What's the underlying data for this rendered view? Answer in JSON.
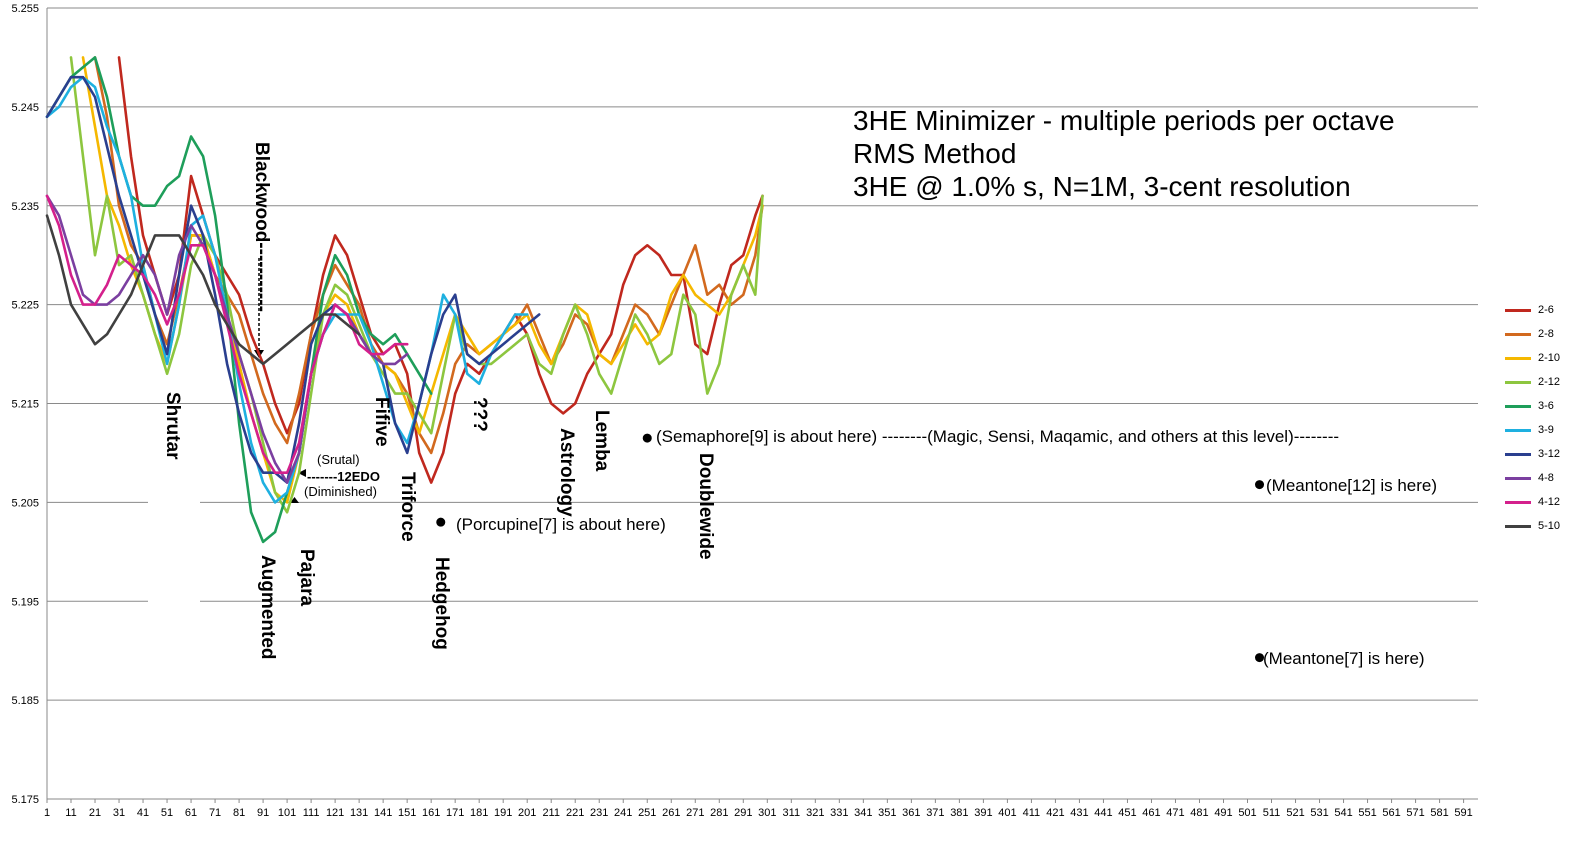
{
  "chart_data": {
    "type": "line",
    "title": "3HE Minimizer - multiple periods per octave",
    "subtitle_lines": [
      "RMS Method",
      "3HE @ 1.0% s, N=1M, 3-cent resolution"
    ],
    "xlabel": "",
    "ylabel": "",
    "xlim": [
      1,
      597
    ],
    "ylim": [
      5.175,
      5.255
    ],
    "x_ticks": [
      1,
      11,
      21,
      31,
      41,
      51,
      61,
      71,
      81,
      91,
      101,
      111,
      121,
      131,
      141,
      151,
      161,
      171,
      181,
      191,
      201,
      211,
      221,
      231,
      241,
      251,
      261,
      271,
      281,
      291,
      301,
      311,
      321,
      331,
      341,
      351,
      361,
      371,
      381,
      391,
      401,
      411,
      421,
      431,
      441,
      451,
      461,
      471,
      481,
      491,
      501,
      511,
      521,
      531,
      541,
      551,
      561,
      571,
      581,
      591
    ],
    "y_ticks": [
      "5.175",
      "5.185",
      "5.195",
      "5.205",
      "5.215",
      "5.225",
      "5.235",
      "5.245",
      "5.255"
    ],
    "grid": "horizontal",
    "legend_position": "right",
    "series": [
      {
        "name": "2-6",
        "color": "#C0281E",
        "x": [
          31,
          36,
          41,
          46,
          51,
          56,
          61,
          66,
          71,
          76,
          81,
          86,
          91,
          96,
          101,
          106,
          111,
          116,
          121,
          126,
          131,
          136,
          141,
          146,
          151,
          156,
          161,
          166,
          171,
          176,
          181,
          186,
          191,
          196,
          201,
          206,
          211,
          216,
          221,
          226,
          231,
          236,
          241,
          246,
          251,
          256,
          261,
          266,
          271,
          276,
          281,
          286,
          291,
          296,
          299
        ],
        "values": [
          5.25,
          5.24,
          5.232,
          5.228,
          5.224,
          5.228,
          5.238,
          5.234,
          5.23,
          5.228,
          5.226,
          5.222,
          5.219,
          5.215,
          5.212,
          5.215,
          5.222,
          5.228,
          5.232,
          5.23,
          5.226,
          5.222,
          5.22,
          5.221,
          5.218,
          5.21,
          5.207,
          5.21,
          5.216,
          5.219,
          5.218,
          5.22,
          5.222,
          5.224,
          5.222,
          5.218,
          5.215,
          5.214,
          5.215,
          5.218,
          5.22,
          5.222,
          5.227,
          5.23,
          5.231,
          5.23,
          5.228,
          5.228,
          5.221,
          5.22,
          5.225,
          5.229,
          5.23,
          5.234,
          5.236
        ]
      },
      {
        "name": "2-8",
        "color": "#D2691E",
        "x": [
          21,
          26,
          31,
          36,
          41,
          46,
          51,
          56,
          61,
          66,
          71,
          76,
          81,
          86,
          91,
          96,
          101,
          106,
          111,
          116,
          121,
          126,
          131,
          136,
          141,
          146,
          151,
          156,
          161,
          166,
          171,
          176,
          181,
          186,
          191,
          196,
          201,
          206,
          211,
          216,
          221,
          226,
          231,
          236,
          241,
          246,
          251,
          256,
          261,
          266,
          271,
          276,
          281,
          286,
          291,
          296,
          299
        ],
        "values": [
          5.25,
          5.244,
          5.235,
          5.231,
          5.229,
          5.224,
          5.221,
          5.226,
          5.232,
          5.232,
          5.228,
          5.226,
          5.224,
          5.22,
          5.216,
          5.213,
          5.211,
          5.216,
          5.222,
          5.226,
          5.229,
          5.227,
          5.225,
          5.221,
          5.219,
          5.218,
          5.216,
          5.212,
          5.21,
          5.214,
          5.219,
          5.221,
          5.22,
          5.221,
          5.222,
          5.223,
          5.225,
          5.222,
          5.219,
          5.221,
          5.224,
          5.223,
          5.22,
          5.219,
          5.222,
          5.225,
          5.224,
          5.222,
          5.225,
          5.228,
          5.231,
          5.226,
          5.227,
          5.225,
          5.226,
          5.23,
          5.235
        ]
      },
      {
        "name": "2-10",
        "color": "#F5B800",
        "x": [
          16,
          21,
          26,
          31,
          36,
          41,
          46,
          51,
          56,
          61,
          66,
          71,
          76,
          81,
          86,
          91,
          96,
          101,
          106,
          111,
          116,
          121,
          126,
          131,
          136,
          141,
          146,
          151,
          156,
          161,
          166,
          171,
          176,
          181,
          186,
          191,
          196,
          201,
          206,
          211,
          216,
          221,
          226,
          231,
          236,
          241,
          246,
          251,
          256,
          261,
          266,
          271,
          276,
          281,
          286,
          291,
          296,
          299
        ],
        "values": [
          5.25,
          5.243,
          5.236,
          5.233,
          5.229,
          5.226,
          5.222,
          5.219,
          5.225,
          5.232,
          5.232,
          5.228,
          5.224,
          5.219,
          5.214,
          5.21,
          5.206,
          5.205,
          5.21,
          5.218,
          5.224,
          5.226,
          5.225,
          5.222,
          5.22,
          5.219,
          5.218,
          5.215,
          5.212,
          5.216,
          5.22,
          5.224,
          5.222,
          5.22,
          5.221,
          5.222,
          5.223,
          5.224,
          5.221,
          5.219,
          5.222,
          5.225,
          5.224,
          5.22,
          5.219,
          5.221,
          5.223,
          5.221,
          5.222,
          5.226,
          5.228,
          5.226,
          5.225,
          5.224,
          5.226,
          5.229,
          5.232,
          5.235
        ]
      },
      {
        "name": "2-12",
        "color": "#8DC63F",
        "x": [
          11,
          16,
          21,
          26,
          31,
          36,
          41,
          46,
          51,
          56,
          61,
          66,
          71,
          76,
          81,
          86,
          91,
          96,
          101,
          106,
          111,
          116,
          121,
          126,
          131,
          136,
          141,
          146,
          151,
          156,
          161,
          166,
          171,
          176,
          181,
          186,
          191,
          196,
          201,
          206,
          211,
          216,
          221,
          226,
          231,
          236,
          241,
          246,
          251,
          256,
          261,
          266,
          271,
          276,
          281,
          286,
          291,
          296,
          299
        ],
        "values": [
          5.25,
          5.24,
          5.23,
          5.236,
          5.229,
          5.23,
          5.226,
          5.222,
          5.218,
          5.222,
          5.229,
          5.232,
          5.23,
          5.226,
          5.22,
          5.216,
          5.211,
          5.206,
          5.204,
          5.208,
          5.216,
          5.224,
          5.227,
          5.226,
          5.223,
          5.22,
          5.218,
          5.216,
          5.216,
          5.214,
          5.212,
          5.218,
          5.224,
          5.22,
          5.219,
          5.219,
          5.22,
          5.221,
          5.222,
          5.219,
          5.218,
          5.222,
          5.225,
          5.222,
          5.218,
          5.216,
          5.22,
          5.224,
          5.222,
          5.219,
          5.22,
          5.226,
          5.224,
          5.216,
          5.219,
          5.226,
          5.229,
          5.226,
          5.236
        ]
      },
      {
        "name": "3-6",
        "color": "#1E9E5A",
        "x": [
          1,
          6,
          11,
          16,
          21,
          26,
          31,
          36,
          41,
          46,
          51,
          56,
          61,
          66,
          71,
          76,
          81,
          86,
          91,
          96,
          101,
          106,
          111,
          116,
          121,
          126,
          131,
          136,
          141,
          146,
          151,
          156,
          161
        ],
        "values": [
          5.244,
          5.246,
          5.248,
          5.249,
          5.25,
          5.246,
          5.24,
          5.236,
          5.235,
          5.235,
          5.237,
          5.238,
          5.242,
          5.24,
          5.234,
          5.225,
          5.213,
          5.204,
          5.201,
          5.202,
          5.206,
          5.21,
          5.218,
          5.226,
          5.23,
          5.228,
          5.224,
          5.222,
          5.221,
          5.222,
          5.22,
          5.218,
          5.216
        ]
      },
      {
        "name": "3-9",
        "color": "#1EB0E0",
        "x": [
          1,
          6,
          11,
          16,
          21,
          26,
          31,
          36,
          41,
          46,
          51,
          56,
          61,
          66,
          71,
          76,
          81,
          86,
          91,
          96,
          101,
          106,
          111,
          116,
          121,
          126,
          131,
          136,
          141,
          146,
          151,
          156,
          161,
          166,
          171,
          176,
          181,
          186,
          191,
          196,
          201
        ],
        "values": [
          5.244,
          5.245,
          5.247,
          5.248,
          5.247,
          5.243,
          5.24,
          5.236,
          5.229,
          5.224,
          5.219,
          5.225,
          5.233,
          5.234,
          5.23,
          5.224,
          5.217,
          5.211,
          5.207,
          5.205,
          5.206,
          5.21,
          5.218,
          5.222,
          5.224,
          5.224,
          5.224,
          5.221,
          5.217,
          5.213,
          5.211,
          5.215,
          5.22,
          5.226,
          5.224,
          5.218,
          5.217,
          5.22,
          5.222,
          5.224,
          5.224
        ]
      },
      {
        "name": "3-12",
        "color": "#2A3F8F",
        "x": [
          1,
          6,
          11,
          16,
          21,
          26,
          31,
          36,
          41,
          46,
          51,
          56,
          61,
          66,
          71,
          76,
          81,
          86,
          91,
          96,
          101,
          106,
          111,
          116,
          121,
          126,
          131,
          136,
          141,
          146,
          151,
          156,
          161,
          166,
          171,
          176,
          181,
          186,
          191,
          196,
          201,
          206
        ],
        "values": [
          5.244,
          5.246,
          5.248,
          5.248,
          5.246,
          5.241,
          5.236,
          5.232,
          5.228,
          5.224,
          5.22,
          5.228,
          5.235,
          5.232,
          5.226,
          5.219,
          5.214,
          5.21,
          5.208,
          5.208,
          5.207,
          5.213,
          5.221,
          5.224,
          5.225,
          5.224,
          5.222,
          5.22,
          5.219,
          5.213,
          5.21,
          5.215,
          5.22,
          5.224,
          5.226,
          5.22,
          5.219,
          5.22,
          5.221,
          5.222,
          5.223,
          5.224
        ]
      },
      {
        "name": "4-8",
        "color": "#7B3FA0",
        "x": [
          1,
          6,
          11,
          16,
          21,
          26,
          31,
          36,
          41,
          46,
          51,
          56,
          61,
          66,
          71,
          76,
          81,
          86,
          91,
          96,
          101,
          106,
          111,
          116,
          121,
          126,
          131,
          136,
          141,
          146,
          151
        ],
        "values": [
          5.236,
          5.234,
          5.23,
          5.226,
          5.225,
          5.225,
          5.226,
          5.228,
          5.23,
          5.228,
          5.224,
          5.23,
          5.233,
          5.231,
          5.228,
          5.224,
          5.22,
          5.216,
          5.212,
          5.209,
          5.207,
          5.21,
          5.218,
          5.222,
          5.225,
          5.224,
          5.222,
          5.22,
          5.219,
          5.219,
          5.22
        ]
      },
      {
        "name": "4-12",
        "color": "#D4208C",
        "x": [
          1,
          6,
          11,
          16,
          21,
          26,
          31,
          36,
          41,
          46,
          51,
          56,
          61,
          66,
          71,
          76,
          81,
          86,
          91,
          96,
          101,
          106,
          111,
          116,
          121,
          126,
          131,
          136,
          141,
          146,
          151
        ],
        "values": [
          5.236,
          5.233,
          5.228,
          5.225,
          5.225,
          5.227,
          5.23,
          5.229,
          5.228,
          5.226,
          5.223,
          5.226,
          5.231,
          5.231,
          5.228,
          5.223,
          5.218,
          5.214,
          5.21,
          5.208,
          5.208,
          5.211,
          5.218,
          5.222,
          5.225,
          5.224,
          5.221,
          5.22,
          5.22,
          5.221,
          5.221
        ]
      },
      {
        "name": "5-10",
        "color": "#404040",
        "x": [
          1,
          6,
          11,
          16,
          21,
          26,
          31,
          36,
          41,
          46,
          51,
          56,
          61,
          66,
          71,
          76,
          81,
          86,
          91,
          96,
          101,
          106,
          111,
          116,
          121,
          126,
          131
        ],
        "values": [
          5.234,
          5.23,
          5.225,
          5.223,
          5.221,
          5.222,
          5.224,
          5.226,
          5.229,
          5.232,
          5.232,
          5.232,
          5.23,
          5.228,
          5.225,
          5.223,
          5.221,
          5.22,
          5.219,
          5.22,
          5.221,
          5.222,
          5.223,
          5.224,
          5.224,
          5.223,
          5.222
        ]
      }
    ],
    "point_markers": [
      {
        "x": 165,
        "y": 5.203
      },
      {
        "x": 251,
        "y": 5.2115
      },
      {
        "x": 506,
        "y": 5.2068
      },
      {
        "x": 506,
        "y": 5.1893
      }
    ]
  },
  "annotations": {
    "blackwood": "Blackwood-----------",
    "shrutar": "Shrutar",
    "augmented": "Augmented",
    "pajara": "Pajara",
    "srutal": "(Srutal)",
    "edo12": "-------12EDO",
    "diminished": "(Diminished)",
    "fifive": "Fifive",
    "triforce": "Triforce",
    "hedgehog": "Hedgehog",
    "qqq": "???",
    "astrology": "Astrology",
    "lemba": "Lemba",
    "doublewide": "Doublewide",
    "porcupine": "(Porcupine[7] is about here)",
    "semaphore": "(Semaphore[9] is about here)  --------(Magic, Sensi, Maqamic, and others at this level)--------",
    "meantone12": "(Meantone[12] is here)",
    "meantone7": "(Meantone[7] is here)"
  }
}
